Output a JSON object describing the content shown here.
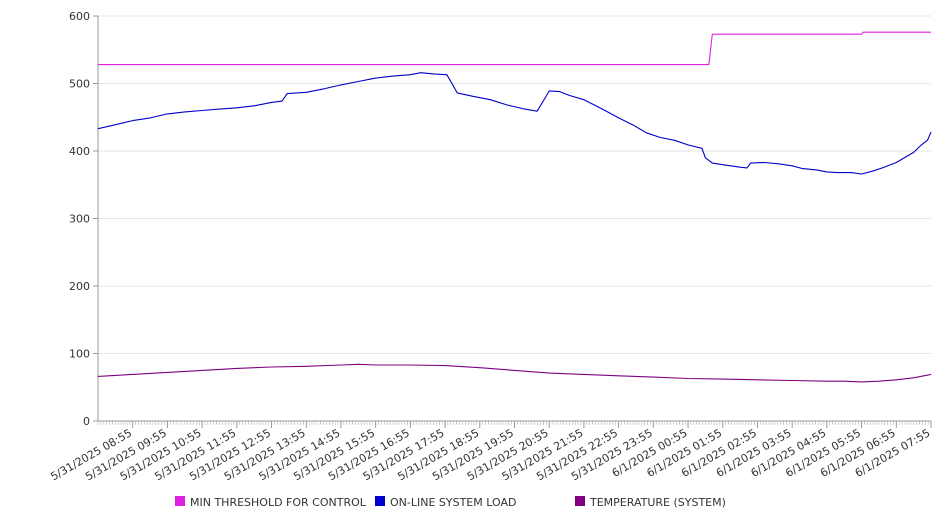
{
  "chart_data": {
    "type": "line",
    "title": "",
    "xlabel": "",
    "ylabel": "",
    "ylim": [
      0,
      600
    ],
    "y_ticks": [
      0,
      100,
      200,
      300,
      400,
      500,
      600
    ],
    "grid": "horizontal",
    "legend_placement": "bottom",
    "x_tick_labels": [
      "5/31/2025 08:55",
      "5/31/2025 09:55",
      "5/31/2025 10:55",
      "5/31/2025 11:55",
      "5/31/2025 12:55",
      "5/31/2025 13:55",
      "5/31/2025 14:55",
      "5/31/2025 15:55",
      "5/31/2025 16:55",
      "5/31/2025 17:55",
      "5/31/2025 18:55",
      "5/31/2025 19:55",
      "5/31/2025 20:55",
      "5/31/2025 21:55",
      "5/31/2025 22:55",
      "5/31/2025 23:55",
      "6/1/2025 00:55",
      "6/1/2025 01:55",
      "6/1/2025 02:55",
      "6/1/2025 03:55",
      "6/1/2025 04:55",
      "6/1/2025 05:55",
      "6/1/2025 06:55",
      "6/1/2025 07:55"
    ],
    "x_range_hours": [
      0,
      24
    ],
    "series": [
      {
        "name": "MIN THRESHOLD FOR CONTROL",
        "color": "#e020e0",
        "points": [
          [
            0,
            528
          ],
          [
            17.6,
            528
          ],
          [
            17.7,
            573
          ],
          [
            22.0,
            573
          ],
          [
            22.05,
            576
          ],
          [
            24,
            576
          ]
        ]
      },
      {
        "name": "ON-LINE SYSTEM LOAD",
        "color": "#0000cc",
        "points": [
          [
            0,
            433
          ],
          [
            0.5,
            439
          ],
          [
            1,
            445
          ],
          [
            1.5,
            449
          ],
          [
            2,
            455
          ],
          [
            2.5,
            458
          ],
          [
            3,
            460
          ],
          [
            3.5,
            462
          ],
          [
            4,
            464
          ],
          [
            4.5,
            467
          ],
          [
            5,
            472
          ],
          [
            5.3,
            474
          ],
          [
            5.45,
            485
          ],
          [
            6,
            487
          ],
          [
            6.5,
            492
          ],
          [
            7,
            498
          ],
          [
            7.5,
            503
          ],
          [
            8,
            508
          ],
          [
            8.5,
            511
          ],
          [
            9,
            513
          ],
          [
            9.3,
            516
          ],
          [
            9.7,
            514
          ],
          [
            10.05,
            513
          ],
          [
            10.2,
            500
          ],
          [
            10.35,
            486
          ],
          [
            10.8,
            481
          ],
          [
            11.3,
            476
          ],
          [
            11.8,
            468
          ],
          [
            12.3,
            462
          ],
          [
            12.65,
            459
          ],
          [
            12.9,
            480
          ],
          [
            13.0,
            489
          ],
          [
            13.3,
            488
          ],
          [
            13.6,
            482
          ],
          [
            14,
            476
          ],
          [
            14.5,
            463
          ],
          [
            15,
            449
          ],
          [
            15.4,
            439
          ],
          [
            15.8,
            427
          ],
          [
            16.2,
            420
          ],
          [
            16.6,
            416
          ],
          [
            17,
            409
          ],
          [
            17.4,
            404
          ],
          [
            17.5,
            390
          ],
          [
            17.7,
            382
          ],
          [
            18.1,
            379
          ],
          [
            18.5,
            376
          ],
          [
            18.7,
            375
          ],
          [
            18.8,
            382
          ],
          [
            19.2,
            383
          ],
          [
            19.6,
            381
          ],
          [
            20,
            378
          ],
          [
            20.3,
            374
          ],
          [
            20.7,
            372
          ],
          [
            21.0,
            369
          ],
          [
            21.3,
            368
          ],
          [
            21.7,
            368
          ],
          [
            22.0,
            366
          ],
          [
            22.3,
            370
          ],
          [
            22.6,
            375
          ],
          [
            23.0,
            383
          ],
          [
            23.3,
            392
          ],
          [
            23.5,
            398
          ],
          [
            23.7,
            408
          ],
          [
            23.9,
            416
          ],
          [
            24,
            428
          ]
        ]
      },
      {
        "name": "TEMPERATURE (SYSTEM)",
        "color": "#800080",
        "points": [
          [
            0,
            66
          ],
          [
            1,
            69
          ],
          [
            2,
            72
          ],
          [
            3,
            75
          ],
          [
            4,
            78
          ],
          [
            5,
            80
          ],
          [
            6,
            81
          ],
          [
            7,
            83
          ],
          [
            7.5,
            84
          ],
          [
            8,
            83
          ],
          [
            9,
            83
          ],
          [
            10,
            82
          ],
          [
            11,
            79
          ],
          [
            12,
            75
          ],
          [
            13,
            71
          ],
          [
            14,
            69
          ],
          [
            15,
            67
          ],
          [
            16,
            65
          ],
          [
            17,
            63
          ],
          [
            18,
            62
          ],
          [
            19,
            61
          ],
          [
            20,
            60
          ],
          [
            21,
            59
          ],
          [
            21.5,
            59
          ],
          [
            22,
            58
          ],
          [
            22.5,
            59
          ],
          [
            23,
            61
          ],
          [
            23.5,
            64
          ],
          [
            24,
            69
          ]
        ]
      }
    ]
  }
}
